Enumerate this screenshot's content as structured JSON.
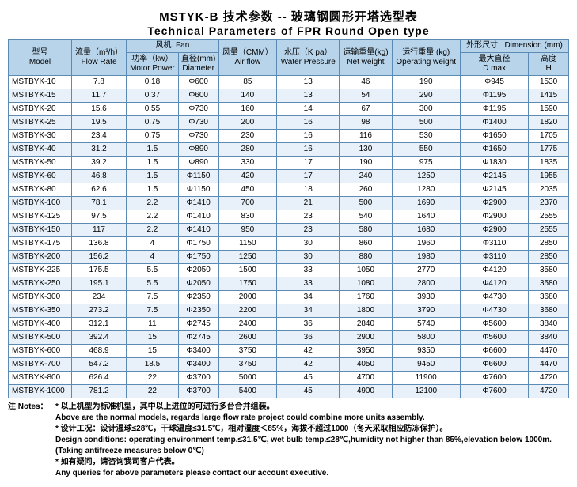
{
  "title_cn": "MSTYK-B  技术参数  --  玻璃钢圆形开塔选型表",
  "title_en": "Technical Parameters of FPR Round Open type",
  "colors": {
    "border": "#5b8ab5",
    "header_bg": "#b8d4ea",
    "row_even": "#e8f1f9",
    "row_odd": "#ffffff"
  },
  "headers": {
    "model": {
      "cn": "型号",
      "en": "Model"
    },
    "flow": {
      "cn": "流量（m³/h）",
      "en": "Flow Rate"
    },
    "fan": {
      "cn": "风机",
      "en": "Fan"
    },
    "power": {
      "cn": "功率（kw）",
      "en": "Motor Power"
    },
    "diameter": {
      "cn": "直径(mm)",
      "en": "Diameter"
    },
    "airflow": {
      "cn": "风量（CMM）",
      "en": "Air flow"
    },
    "pressure": {
      "cn": "水压（K pa）",
      "en": "Water Pressure"
    },
    "netw": {
      "cn": "运输重量(kg)",
      "en": "Net weight"
    },
    "opw": {
      "cn": "运行重量 (kg)",
      "en": "Operating weight"
    },
    "dim": {
      "cn": "外形尺寸",
      "en": "Dimension (mm)"
    },
    "dmax": {
      "cn": "最大直径",
      "en": "D max"
    },
    "h": {
      "cn": "高度",
      "en": "H"
    }
  },
  "rows": [
    [
      "MSTBYK-10",
      "7.8",
      "0.18",
      "Φ600",
      "85",
      "13",
      "46",
      "190",
      "Φ945",
      "1530"
    ],
    [
      "MSTBYK-15",
      "11.7",
      "0.37",
      "Φ600",
      "140",
      "13",
      "54",
      "290",
      "Φ1195",
      "1415"
    ],
    [
      "MSTBYK-20",
      "15.6",
      "0.55",
      "Φ730",
      "160",
      "14",
      "67",
      "300",
      "Φ1195",
      "1590"
    ],
    [
      "MSTBYK-25",
      "19.5",
      "0.75",
      "Φ730",
      "200",
      "16",
      "98",
      "500",
      "Φ1400",
      "1820"
    ],
    [
      "MSTBYK-30",
      "23.4",
      "0.75",
      "Φ730",
      "230",
      "16",
      "116",
      "530",
      "Φ1650",
      "1705"
    ],
    [
      "MSTBYK-40",
      "31.2",
      "1.5",
      "Φ890",
      "280",
      "16",
      "130",
      "550",
      "Φ1650",
      "1775"
    ],
    [
      "MSTBYK-50",
      "39.2",
      "1.5",
      "Φ890",
      "330",
      "17",
      "190",
      "975",
      "Φ1830",
      "1835"
    ],
    [
      "MSTBYK-60",
      "46.8",
      "1.5",
      "Φ1150",
      "420",
      "17",
      "240",
      "1250",
      "Φ2145",
      "1955"
    ],
    [
      "MSTBYK-80",
      "62.6",
      "1.5",
      "Φ1150",
      "450",
      "18",
      "260",
      "1280",
      "Φ2145",
      "2035"
    ],
    [
      "MSTBYK-100",
      "78.1",
      "2.2",
      "Φ1410",
      "700",
      "21",
      "500",
      "1690",
      "Φ2900",
      "2370"
    ],
    [
      "MSTBYK-125",
      "97.5",
      "2.2",
      "Φ1410",
      "830",
      "23",
      "540",
      "1640",
      "Φ2900",
      "2555"
    ],
    [
      "MSTBYK-150",
      "117",
      "2.2",
      "Φ1410",
      "950",
      "23",
      "580",
      "1680",
      "Φ2900",
      "2555"
    ],
    [
      "MSTBYK-175",
      "136.8",
      "4",
      "Φ1750",
      "1150",
      "30",
      "860",
      "1960",
      "Φ3110",
      "2850"
    ],
    [
      "MSTBYK-200",
      "156.2",
      "4",
      "Φ1750",
      "1250",
      "30",
      "880",
      "1980",
      "Φ3110",
      "2850"
    ],
    [
      "MSTBYK-225",
      "175.5",
      "5.5",
      "Φ2050",
      "1500",
      "33",
      "1050",
      "2770",
      "Φ4120",
      "3580"
    ],
    [
      "MSTBYK-250",
      "195.1",
      "5.5",
      "Φ2050",
      "1750",
      "33",
      "1080",
      "2800",
      "Φ4120",
      "3580"
    ],
    [
      "MSTBYK-300",
      "234",
      "7.5",
      "Φ2350",
      "2000",
      "34",
      "1760",
      "3930",
      "Φ4730",
      "3680"
    ],
    [
      "MSTBYK-350",
      "273.2",
      "7.5",
      "Φ2350",
      "2200",
      "34",
      "1800",
      "3790",
      "Φ4730",
      "3680"
    ],
    [
      "MSTBYK-400",
      "312.1",
      "11",
      "Φ2745",
      "2400",
      "36",
      "2840",
      "5740",
      "Φ5600",
      "3840"
    ],
    [
      "MSTBYK-500",
      "392.4",
      "15",
      "Φ2745",
      "2600",
      "36",
      "2900",
      "5800",
      "Φ5600",
      "3840"
    ],
    [
      "MSTBYK-600",
      "468.9",
      "15",
      "Φ3400",
      "3750",
      "42",
      "3950",
      "9350",
      "Φ6600",
      "4470"
    ],
    [
      "MSTBYK-700",
      "547.2",
      "18.5",
      "Φ3400",
      "3750",
      "42",
      "4050",
      "9450",
      "Φ6600",
      "4470"
    ],
    [
      "MSTBYK-800",
      "626.4",
      "22",
      "Φ3700",
      "5000",
      "45",
      "4700",
      "11900",
      "Φ7600",
      "4720"
    ],
    [
      "MSTBYK-1000",
      "781.2",
      "22",
      "Φ3700",
      "5400",
      "45",
      "4900",
      "12100",
      "Φ7600",
      "4720"
    ]
  ],
  "notes": {
    "label": "注 Notes：",
    "lines": [
      "* 以上机型为标准机型，其中以上进位的可进行多台合并组装。",
      "Above are the normal models, regards large flow rate project could combine more units assembly.",
      "* 设计工况：设计湿球≤28℃，干球温度≤31.5℃，相对湿度＜85%，海拔不超过1000（冬天采取相应防冻保护）。",
      "Design conditions: operating environment temp.≤31.5℃, wet bulb temp.≤28℃,humidity not higher than 85%,elevation below 1000m.",
      "(Taking antifreeze measures below 0℃)",
      "* 如有疑问，请咨询我司客户代表。",
      "Any queries for above parameters please contact our account executive."
    ]
  }
}
